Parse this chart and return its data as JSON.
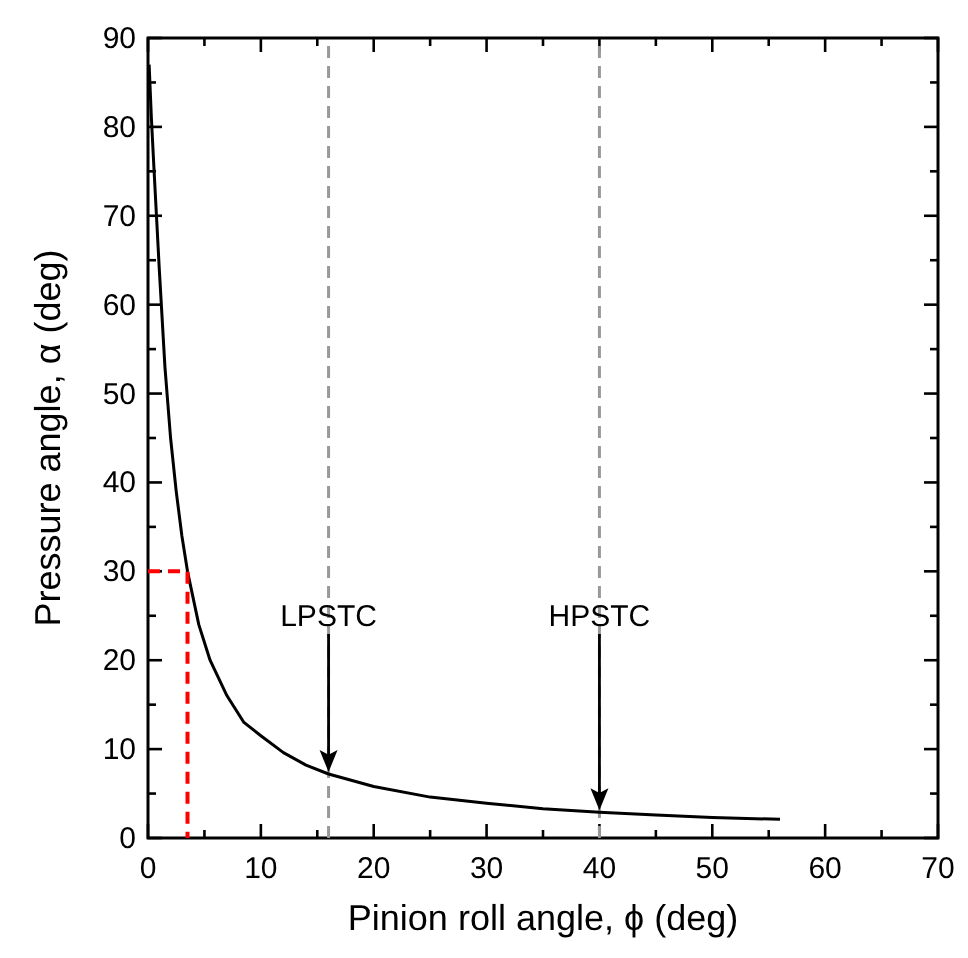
{
  "chart_data": {
    "type": "line",
    "xlabel": "Pinion roll angle, ϕ (deg)",
    "ylabel": "Pressure angle, α (deg)",
    "xlim": [
      0,
      70
    ],
    "ylim": [
      0,
      90
    ],
    "xticks": [
      0,
      {
        "value": 5,
        "label": null
      },
      10,
      {
        "value": 15,
        "label": null
      },
      20,
      {
        "value": 25,
        "label": null
      },
      30,
      {
        "value": 35,
        "label": null
      },
      40,
      {
        "value": 45,
        "label": null
      },
      50,
      {
        "value": 55,
        "label": null
      },
      60,
      {
        "value": 65,
        "label": null
      },
      70
    ],
    "yticks": [
      0,
      {
        "value": 5,
        "label": null
      },
      10,
      {
        "value": 15,
        "label": null
      },
      20,
      {
        "value": 25,
        "label": null
      },
      30,
      {
        "value": 35,
        "label": null
      },
      40,
      {
        "value": 45,
        "label": null
      },
      50,
      {
        "value": 55,
        "label": null
      },
      60,
      {
        "value": 65,
        "label": null
      },
      70,
      {
        "value": 75,
        "label": null
      },
      80,
      {
        "value": 85,
        "label": null
      },
      90
    ],
    "series": [
      {
        "color": "#000000",
        "line_style": "solid",
        "x": [
          0.1,
          0.3,
          0.5,
          0.75,
          1,
          1.5,
          2,
          2.5,
          3,
          3.5,
          4.5,
          5.5,
          7,
          8.5,
          10,
          12,
          14,
          16,
          20,
          25,
          30,
          35,
          40,
          45,
          50,
          56
        ],
        "values": [
          87,
          81,
          76,
          70,
          64,
          53,
          45,
          39,
          34,
          30,
          24,
          20,
          16,
          13,
          11.5,
          9.6,
          8.2,
          7.2,
          5.8,
          4.6,
          3.9,
          3.3,
          2.9,
          2.6,
          2.3,
          2.1
        ]
      },
      {
        "color": "#ff0000",
        "line_style": "dashed",
        "x": [
          0,
          3.5,
          3.5
        ],
        "values": [
          30,
          30,
          0
        ]
      }
    ],
    "ref_lines": [
      {
        "axis": "x",
        "value": 16,
        "color": "#999999",
        "line_style": "dashed"
      },
      {
        "axis": "x",
        "value": 40,
        "color": "#999999",
        "line_style": "dashed"
      }
    ],
    "annotations": [
      {
        "text": "LPSTC",
        "x": 16
      },
      {
        "text": "HPSTC",
        "x": 40
      }
    ],
    "grid": false,
    "legend": false,
    "marker": "none"
  }
}
